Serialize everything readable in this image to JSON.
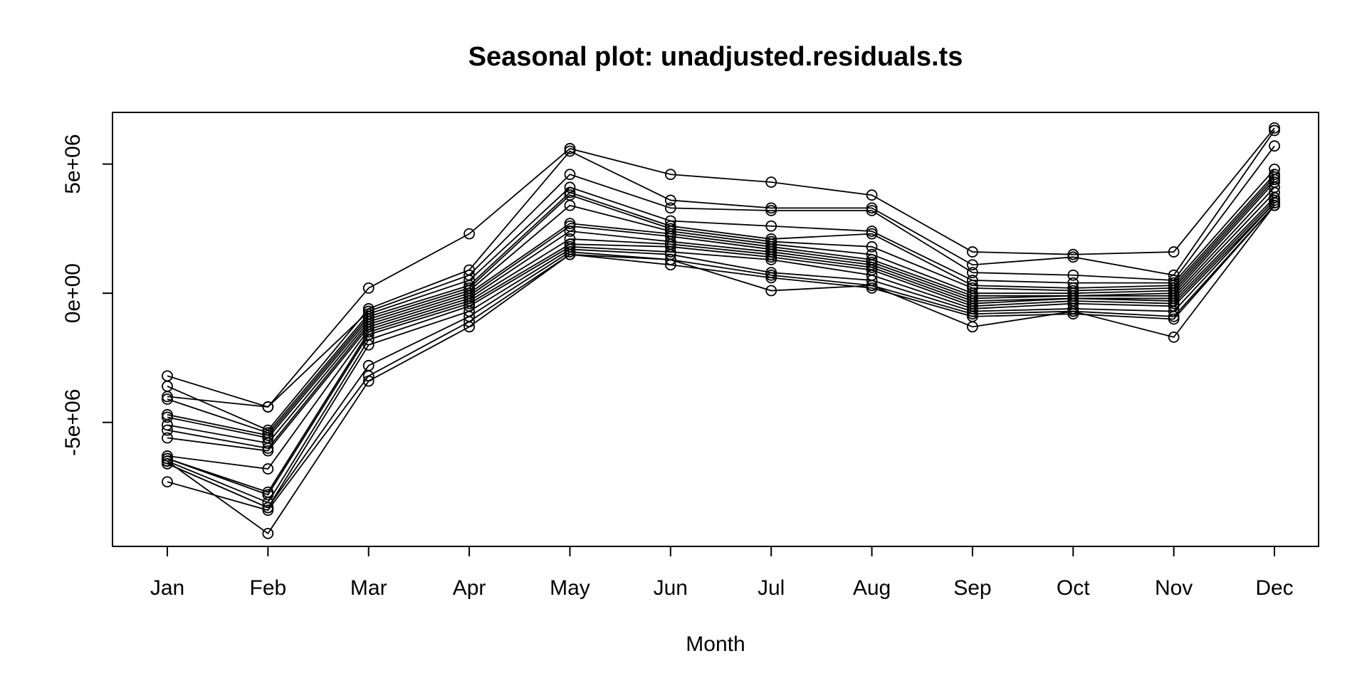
{
  "chart_data": {
    "type": "line",
    "title": "Seasonal plot: unadjusted.residuals.ts",
    "xlabel": "Month",
    "ylabel": "",
    "categories": [
      "Jan",
      "Feb",
      "Mar",
      "Apr",
      "May",
      "Jun",
      "Jul",
      "Aug",
      "Sep",
      "Oct",
      "Nov",
      "Dec"
    ],
    "ylim": [
      -9800000,
      7000000
    ],
    "yticks": [
      -5000000,
      0,
      5000000
    ],
    "ytick_labels": [
      "-5e+06",
      "0e+00",
      "5e+06"
    ],
    "marker": "open-circle",
    "grid": false,
    "series": [
      {
        "values": [
          -3200000,
          -4400000,
          200000,
          2300000,
          5600000,
          4600000,
          4300000,
          3800000,
          1600000,
          1500000,
          1600000,
          6400000
        ]
      },
      {
        "values": [
          -3600000,
          -5300000,
          -600000,
          900000,
          5500000,
          3600000,
          3300000,
          3300000,
          1100000,
          1400000,
          700000,
          6300000
        ]
      },
      {
        "values": [
          -4000000,
          -4400000,
          -700000,
          700000,
          4600000,
          3300000,
          3200000,
          3200000,
          800000,
          700000,
          500000,
          5700000
        ]
      },
      {
        "values": [
          -4100000,
          -5400000,
          -800000,
          500000,
          4100000,
          2800000,
          2600000,
          2400000,
          500000,
          400000,
          400000,
          4800000
        ]
      },
      {
        "values": [
          -4700000,
          -5500000,
          -900000,
          300000,
          3900000,
          2600000,
          2100000,
          2300000,
          300000,
          200000,
          300000,
          4600000
        ]
      },
      {
        "values": [
          -4800000,
          -5600000,
          -1000000,
          200000,
          3800000,
          2500000,
          2000000,
          1800000,
          200000,
          100000,
          200000,
          4500000
        ]
      },
      {
        "values": [
          -5100000,
          -5800000,
          -1100000,
          100000,
          3400000,
          2400000,
          1900000,
          1500000,
          0,
          0,
          100000,
          4400000
        ]
      },
      {
        "values": [
          -5300000,
          -6000000,
          -1200000,
          0,
          2700000,
          2300000,
          1800000,
          1300000,
          -100000,
          -100000,
          0,
          4300000
        ]
      },
      {
        "values": [
          -5600000,
          -6100000,
          -1300000,
          -100000,
          2600000,
          2200000,
          1700000,
          1200000,
          -200000,
          -100000,
          -100000,
          4100000
        ]
      },
      {
        "values": [
          -6300000,
          -6800000,
          -1400000,
          -200000,
          2400000,
          2000000,
          1600000,
          1100000,
          -300000,
          -200000,
          -200000,
          3900000
        ]
      },
      {
        "values": [
          -6400000,
          -7700000,
          -1500000,
          -300000,
          2100000,
          1900000,
          1500000,
          1000000,
          -400000,
          -200000,
          -300000,
          3700000
        ]
      },
      {
        "values": [
          -6400000,
          -7800000,
          -1600000,
          -400000,
          1900000,
          1800000,
          1400000,
          900000,
          -500000,
          -300000,
          -400000,
          3600000
        ]
      },
      {
        "values": [
          -6500000,
          -8100000,
          -1800000,
          -500000,
          1800000,
          1600000,
          1300000,
          700000,
          -600000,
          -400000,
          -500000,
          3500000
        ]
      },
      {
        "values": [
          -6600000,
          -8300000,
          -2000000,
          -700000,
          1700000,
          1500000,
          800000,
          500000,
          -700000,
          -600000,
          -700000,
          3500000
        ]
      },
      {
        "values": [
          -6600000,
          -8300000,
          -2800000,
          -900000,
          1600000,
          1300000,
          700000,
          300000,
          -800000,
          -700000,
          -900000,
          3400000
        ]
      },
      {
        "values": [
          -7300000,
          -8400000,
          -3200000,
          -1100000,
          1500000,
          1100000,
          600000,
          200000,
          -900000,
          -800000,
          -1000000,
          3400000
        ]
      },
      {
        "values": [
          -6500000,
          -9300000,
          -3400000,
          -1300000,
          1500000,
          1300000,
          100000,
          300000,
          -1300000,
          -700000,
          -1700000,
          3400000
        ]
      }
    ]
  }
}
